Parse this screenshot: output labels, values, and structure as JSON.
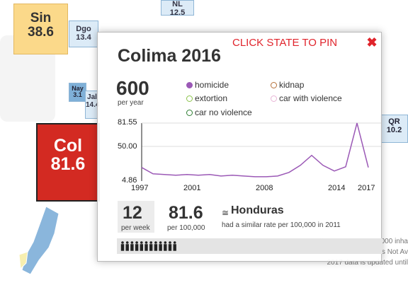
{
  "map": {
    "tiles": [
      {
        "abbr": "Sin",
        "rate": "38.6"
      },
      {
        "abbr": "Dgo",
        "rate": "13.4"
      },
      {
        "abbr": "NL",
        "rate": "12.5"
      },
      {
        "abbr": "Nay",
        "rate": "3.1"
      },
      {
        "abbr": "Jal",
        "rate": "14.4"
      },
      {
        "abbr": "Col",
        "rate": "81.6"
      },
      {
        "abbr": "QR",
        "rate": "10.2"
      }
    ],
    "footnotes": [
      "All rates are per 100,000 inha",
      "NA means Not Av",
      "2017 data is updated until"
    ]
  },
  "panel": {
    "title": "Colima 2016",
    "pin_note": "CLICK STATE TO PIN",
    "close_icon": "close-icon",
    "total": "600",
    "total_label": "per year",
    "legend": [
      {
        "label": "homicide",
        "color": "#9b59b6",
        "filled": true
      },
      {
        "label": "kidnap",
        "color": "#b5703a",
        "filled": false
      },
      {
        "label": "extortion",
        "color": "#8bc34a",
        "filled": false
      },
      {
        "label": "car with violence",
        "color": "#e8b4d6",
        "filled": false
      },
      {
        "label": "car no violence",
        "color": "#2e7d32",
        "filled": false
      }
    ],
    "weekly": "12",
    "weekly_label": "per week",
    "rate": "81.6",
    "rate_label": "per 100,000",
    "compare_icon": "equal-icon",
    "compare_name": "Honduras",
    "compare_note": "had a similar rate per 100,000 in 2011",
    "people_icon": "person-icon"
  },
  "chart_data": {
    "type": "line",
    "series": [
      {
        "name": "homicide",
        "x": [
          1997,
          1998,
          1999,
          2000,
          2001,
          2002,
          2003,
          2004,
          2005,
          2006,
          2007,
          2008,
          2009,
          2010,
          2011,
          2012,
          2013,
          2014,
          2015,
          2016,
          2017
        ],
        "values": [
          19,
          10,
          9,
          8,
          9,
          8,
          9,
          7,
          8,
          7,
          6,
          6,
          7,
          12,
          22,
          36,
          22,
          14,
          20,
          81.55,
          19
        ]
      }
    ],
    "ytick_labels": [
      "81.55",
      "50.00",
      "4.86"
    ],
    "xtick_labels": [
      "1997",
      "2001",
      "2008",
      "2014",
      "2017"
    ],
    "ylim": [
      4.86,
      81.55
    ],
    "xlim": [
      1997,
      2017
    ]
  }
}
